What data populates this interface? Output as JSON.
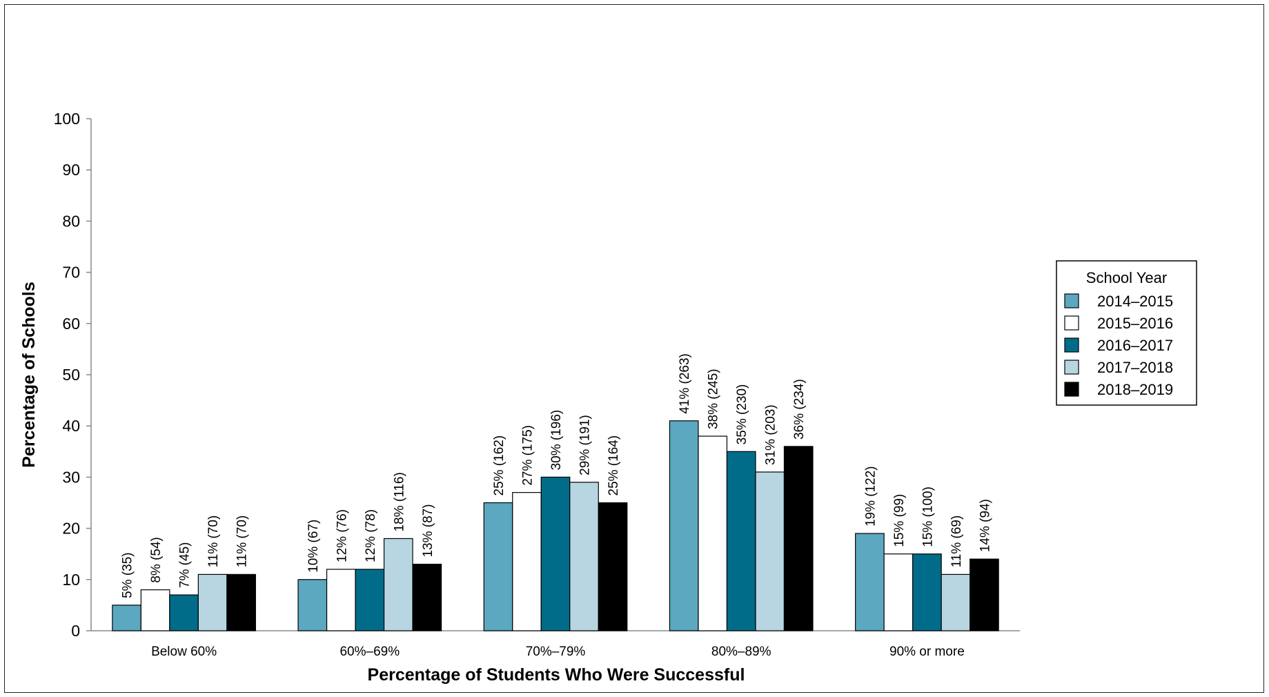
{
  "chart_data": {
    "type": "bar",
    "title": "",
    "xlabel": "Percentage of Students Who Were Successful",
    "ylabel": "Percentage of Schools",
    "ylim": [
      0,
      100
    ],
    "yticks": [
      0,
      10,
      20,
      30,
      40,
      50,
      60,
      70,
      80,
      90,
      100
    ],
    "grid": false,
    "legend_title": "School Year",
    "legend_position": "right",
    "categories": [
      "Below 60%",
      "60%–69%",
      "70%–79%",
      "80%–89%",
      "90% or more"
    ],
    "series": [
      {
        "name": "2014–2015",
        "color": "#5ba8c0",
        "values": [
          5,
          10,
          25,
          41,
          19
        ],
        "labels": [
          "5% (35)",
          "10% (67)",
          "25% (162)",
          "41% (263)",
          "19% (122)"
        ]
      },
      {
        "name": "2015–2016",
        "color": "#ffffff",
        "values": [
          8,
          12,
          27,
          38,
          15
        ],
        "labels": [
          "8% (54)",
          "12% (76)",
          "27% (175)",
          "38% (245)",
          "15% (99)"
        ]
      },
      {
        "name": "2016–2017",
        "color": "#006c8a",
        "values": [
          7,
          12,
          30,
          35,
          15
        ],
        "labels": [
          "7% (45)",
          "12% (78)",
          "30% (196)",
          "35% (230)",
          "15% (100)"
        ]
      },
      {
        "name": "2017–2018",
        "color": "#b8d6e2",
        "values": [
          11,
          18,
          29,
          31,
          11
        ],
        "labels": [
          "11% (70)",
          "18% (116)",
          "29% (191)",
          "31% (203)",
          "11% (69)"
        ]
      },
      {
        "name": "2018–2019",
        "color": "#000000",
        "values": [
          11,
          13,
          25,
          36,
          14
        ],
        "labels": [
          "11% (70)",
          "13% (87)",
          "25% (164)",
          "36% (234)",
          "14% (94)"
        ]
      }
    ]
  }
}
